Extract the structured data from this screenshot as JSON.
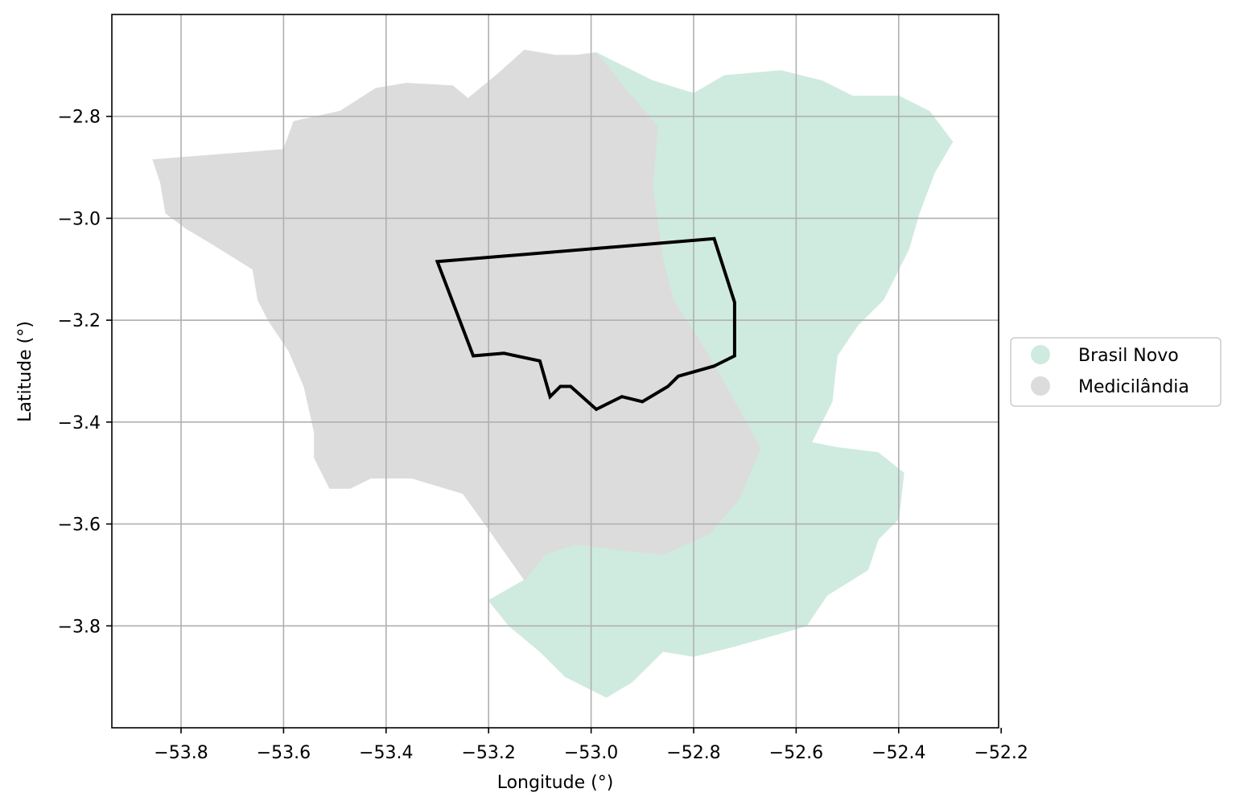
{
  "chart_data": {
    "type": "map",
    "xlabel": "Longitude (°)",
    "ylabel": "Latitude (°)",
    "xlim": [
      -53.935,
      -52.205
    ],
    "ylim": [
      -4.0,
      -2.6
    ],
    "xticks": [
      -53.8,
      -53.6,
      -53.4,
      -53.2,
      -53.0,
      -52.8,
      -52.6,
      -52.4,
      -52.2
    ],
    "yticks": [
      -2.8,
      -3.0,
      -3.2,
      -3.4,
      -3.6,
      -3.8
    ],
    "xtick_labels": [
      "−53.8",
      "−53.6",
      "−53.4",
      "−53.2",
      "−53.0",
      "−52.8",
      "−52.6",
      "−52.4",
      "−52.2"
    ],
    "ytick_labels": [
      "−2.8",
      "−3.0",
      "−3.2",
      "−3.4",
      "−3.6",
      "−3.8"
    ],
    "grid": true,
    "legend_placement": "right-center",
    "colors": {
      "brasil_novo": "#cfebdf",
      "medicilandia": "#dcdcdc",
      "outline": "#000000",
      "grid": "#b0b0b0"
    },
    "regions": [
      {
        "name": "Brasil Novo",
        "color": "#cfebdf",
        "boundary": [
          [
            -52.99,
            -2.675
          ],
          [
            -52.94,
            -2.7
          ],
          [
            -52.88,
            -2.73
          ],
          [
            -52.8,
            -2.755
          ],
          [
            -52.74,
            -2.72
          ],
          [
            -52.63,
            -2.71
          ],
          [
            -52.55,
            -2.73
          ],
          [
            -52.49,
            -2.76
          ],
          [
            -52.4,
            -2.76
          ],
          [
            -52.34,
            -2.79
          ],
          [
            -52.295,
            -2.85
          ],
          [
            -52.33,
            -2.91
          ],
          [
            -52.36,
            -2.99
          ],
          [
            -52.38,
            -3.06
          ],
          [
            -52.43,
            -3.16
          ],
          [
            -52.48,
            -3.21
          ],
          [
            -52.52,
            -3.27
          ],
          [
            -52.53,
            -3.36
          ],
          [
            -52.57,
            -3.44
          ],
          [
            -52.52,
            -3.45
          ],
          [
            -52.44,
            -3.46
          ],
          [
            -52.39,
            -3.5
          ],
          [
            -52.4,
            -3.59
          ],
          [
            -52.44,
            -3.63
          ],
          [
            -52.46,
            -3.69
          ],
          [
            -52.54,
            -3.74
          ],
          [
            -52.58,
            -3.8
          ],
          [
            -52.65,
            -3.82
          ],
          [
            -52.72,
            -3.84
          ],
          [
            -52.8,
            -3.86
          ],
          [
            -52.86,
            -3.85
          ],
          [
            -52.92,
            -3.91
          ],
          [
            -52.97,
            -3.94
          ],
          [
            -53.05,
            -3.9
          ],
          [
            -53.1,
            -3.85
          ],
          [
            -53.16,
            -3.8
          ],
          [
            -53.2,
            -3.75
          ],
          [
            -53.13,
            -3.71
          ],
          [
            -53.09,
            -3.66
          ],
          [
            -53.03,
            -3.64
          ],
          [
            -52.95,
            -3.65
          ],
          [
            -52.86,
            -3.66
          ],
          [
            -52.77,
            -3.62
          ],
          [
            -52.71,
            -3.55
          ],
          [
            -52.67,
            -3.45
          ],
          [
            -52.72,
            -3.36
          ],
          [
            -52.77,
            -3.27
          ],
          [
            -52.84,
            -3.16
          ],
          [
            -52.86,
            -3.08
          ],
          [
            -52.87,
            -3.01
          ],
          [
            -52.88,
            -2.94
          ],
          [
            -52.87,
            -2.82
          ],
          [
            -52.93,
            -2.75
          ]
        ]
      },
      {
        "name": "Medicilândia",
        "color": "#dcdcdc",
        "boundary": [
          [
            -53.855,
            -2.885
          ],
          [
            -53.6,
            -2.865
          ],
          [
            -53.58,
            -2.81
          ],
          [
            -53.49,
            -2.79
          ],
          [
            -53.42,
            -2.745
          ],
          [
            -53.36,
            -2.735
          ],
          [
            -53.27,
            -2.74
          ],
          [
            -53.24,
            -2.765
          ],
          [
            -53.18,
            -2.715
          ],
          [
            -53.13,
            -2.67
          ],
          [
            -53.07,
            -2.68
          ],
          [
            -53.03,
            -2.68
          ],
          [
            -52.99,
            -2.675
          ],
          [
            -52.93,
            -2.75
          ],
          [
            -52.87,
            -2.82
          ],
          [
            -52.88,
            -2.94
          ],
          [
            -52.87,
            -3.01
          ],
          [
            -52.86,
            -3.08
          ],
          [
            -52.84,
            -3.16
          ],
          [
            -52.77,
            -3.27
          ],
          [
            -52.72,
            -3.36
          ],
          [
            -52.67,
            -3.45
          ],
          [
            -52.71,
            -3.55
          ],
          [
            -52.77,
            -3.62
          ],
          [
            -52.86,
            -3.66
          ],
          [
            -52.95,
            -3.65
          ],
          [
            -53.03,
            -3.64
          ],
          [
            -53.09,
            -3.66
          ],
          [
            -53.13,
            -3.71
          ],
          [
            -53.2,
            -3.61
          ],
          [
            -53.25,
            -3.54
          ],
          [
            -53.35,
            -3.51
          ],
          [
            -53.43,
            -3.51
          ],
          [
            -53.47,
            -3.53
          ],
          [
            -53.51,
            -3.53
          ],
          [
            -53.54,
            -3.47
          ],
          [
            -53.54,
            -3.42
          ],
          [
            -53.56,
            -3.33
          ],
          [
            -53.59,
            -3.26
          ],
          [
            -53.63,
            -3.2
          ],
          [
            -53.65,
            -3.16
          ],
          [
            -53.66,
            -3.1
          ],
          [
            -53.74,
            -3.05
          ],
          [
            -53.79,
            -3.02
          ],
          [
            -53.83,
            -2.99
          ],
          [
            -53.84,
            -2.93
          ]
        ]
      }
    ],
    "outline": {
      "boundary": [
        [
          -53.3,
          -3.085
        ],
        [
          -52.76,
          -3.04
        ],
        [
          -52.72,
          -3.165
        ],
        [
          -52.72,
          -3.27
        ],
        [
          -52.76,
          -3.29
        ],
        [
          -52.83,
          -3.31
        ],
        [
          -52.85,
          -3.33
        ],
        [
          -52.9,
          -3.36
        ],
        [
          -52.94,
          -3.35
        ],
        [
          -52.96,
          -3.36
        ],
        [
          -52.99,
          -3.375
        ],
        [
          -53.04,
          -3.33
        ],
        [
          -53.06,
          -3.33
        ],
        [
          -53.08,
          -3.35
        ],
        [
          -53.1,
          -3.28
        ],
        [
          -53.17,
          -3.265
        ],
        [
          -53.23,
          -3.27
        ]
      ]
    },
    "legend": [
      "Brasil Novo",
      "Medicilândia"
    ]
  }
}
